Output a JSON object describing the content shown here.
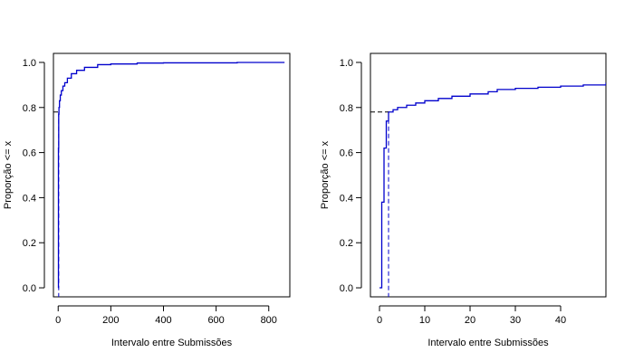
{
  "colors": {
    "series": "#0000cc",
    "reference": "#000000",
    "background": "#ffffff"
  },
  "chart_data": [
    {
      "type": "line",
      "subtype": "ecdf-step",
      "title": "",
      "xlabel": "Intervalo entre Submissões",
      "ylabel": "Proporção <= x",
      "xlim": [
        -18,
        880
      ],
      "ylim": [
        -0.04,
        1.04
      ],
      "xticks": [
        0,
        200,
        400,
        600,
        800
      ],
      "yticks": [
        0.0,
        0.2,
        0.4,
        0.6,
        0.8,
        1.0
      ],
      "ytick_labels": [
        "0.0",
        "0.2",
        "0.4",
        "0.6",
        "0.8",
        "1.0"
      ],
      "grid": false,
      "series": [
        {
          "x": [
            0,
            1,
            2,
            3,
            5,
            8,
            12,
            18,
            25,
            35,
            50,
            70,
            100,
            150,
            200,
            300,
            400,
            500,
            600,
            680,
            860
          ],
          "y": [
            0.0,
            0.62,
            0.77,
            0.8,
            0.83,
            0.855,
            0.875,
            0.895,
            0.91,
            0.93,
            0.95,
            0.965,
            0.978,
            0.99,
            0.993,
            0.997,
            0.998,
            0.998,
            0.998,
            1.0,
            1.0
          ]
        }
      ],
      "reference": {
        "x": 2,
        "y": 0.78
      }
    },
    {
      "type": "line",
      "subtype": "ecdf-step",
      "title": "",
      "xlabel": "Intervalo entre Submissões",
      "ylabel": "Proporção <= x",
      "xlim": [
        -2,
        50
      ],
      "ylim": [
        -0.04,
        1.04
      ],
      "xticks": [
        0,
        10,
        20,
        30,
        40
      ],
      "yticks": [
        0.0,
        0.2,
        0.4,
        0.6,
        0.8,
        1.0
      ],
      "ytick_labels": [
        "0.0",
        "0.2",
        "0.4",
        "0.6",
        "0.8",
        "1.0"
      ],
      "grid": false,
      "series": [
        {
          "x": [
            0,
            0.5,
            1,
            1.5,
            2,
            3,
            4,
            6,
            8,
            10,
            13,
            16,
            20,
            24,
            26,
            30,
            35,
            40,
            45,
            50
          ],
          "y": [
            0.0,
            0.38,
            0.62,
            0.74,
            0.78,
            0.79,
            0.8,
            0.81,
            0.82,
            0.83,
            0.84,
            0.85,
            0.86,
            0.87,
            0.88,
            0.885,
            0.89,
            0.895,
            0.9,
            0.91
          ]
        }
      ],
      "reference": {
        "x": 2,
        "y": 0.78
      }
    }
  ]
}
